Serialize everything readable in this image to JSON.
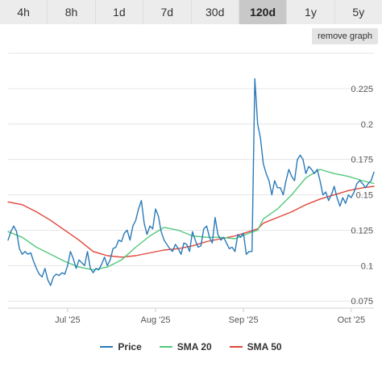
{
  "tabs": [
    {
      "label": "4h",
      "active": false
    },
    {
      "label": "8h",
      "active": false
    },
    {
      "label": "1d",
      "active": false
    },
    {
      "label": "7d",
      "active": false
    },
    {
      "label": "30d",
      "active": false
    },
    {
      "label": "120d",
      "active": true
    },
    {
      "label": "1y",
      "active": false
    },
    {
      "label": "5y",
      "active": false
    }
  ],
  "remove_graph_label": "remove graph",
  "colors": {
    "price": "#2a7ab8",
    "sma20": "#52c97a",
    "sma50": "#e0453a",
    "grid": "#e6e6e6"
  },
  "legend": [
    {
      "label": "Price",
      "color": "#2a7ab8"
    },
    {
      "label": "SMA 20",
      "color": "#52c97a"
    },
    {
      "label": "SMA 50",
      "color": "#e0453a"
    }
  ],
  "chart_data": {
    "type": "line",
    "x_ticks": [
      "Jul '25",
      "Aug '25",
      "Sep '25",
      "Oct '25"
    ],
    "y_ticks": [
      "0.075",
      "0.1",
      "0.125",
      "0.15",
      "0.175",
      "0.2",
      "0.225"
    ],
    "ylim": [
      0.07,
      0.25
    ],
    "grid": true,
    "x_range_days": [
      0,
      129
    ],
    "x_tick_days": [
      21,
      52,
      83,
      121
    ],
    "series": [
      {
        "name": "Price",
        "points": [
          [
            0,
            0.118
          ],
          [
            1,
            0.124
          ],
          [
            2,
            0.128
          ],
          [
            3,
            0.124
          ],
          [
            4,
            0.112
          ],
          [
            5,
            0.108
          ],
          [
            6,
            0.11
          ],
          [
            7,
            0.108
          ],
          [
            8,
            0.109
          ],
          [
            9,
            0.103
          ],
          [
            10,
            0.098
          ],
          [
            11,
            0.094
          ],
          [
            12,
            0.092
          ],
          [
            13,
            0.098
          ],
          [
            14,
            0.09
          ],
          [
            15,
            0.086
          ],
          [
            16,
            0.092
          ],
          [
            17,
            0.094
          ],
          [
            18,
            0.093
          ],
          [
            19,
            0.095
          ],
          [
            20,
            0.094
          ],
          [
            21,
            0.1
          ],
          [
            22,
            0.11
          ],
          [
            23,
            0.105
          ],
          [
            24,
            0.098
          ],
          [
            25,
            0.104
          ],
          [
            26,
            0.102
          ],
          [
            27,
            0.1
          ],
          [
            28,
            0.11
          ],
          [
            29,
            0.098
          ],
          [
            30,
            0.095
          ],
          [
            31,
            0.098
          ],
          [
            32,
            0.097
          ],
          [
            33,
            0.101
          ],
          [
            34,
            0.106
          ],
          [
            35,
            0.1
          ],
          [
            36,
            0.104
          ],
          [
            37,
            0.112
          ],
          [
            38,
            0.113
          ],
          [
            39,
            0.118
          ],
          [
            40,
            0.117
          ],
          [
            41,
            0.123
          ],
          [
            42,
            0.125
          ],
          [
            43,
            0.118
          ],
          [
            44,
            0.128
          ],
          [
            45,
            0.132
          ],
          [
            46,
            0.14
          ],
          [
            47,
            0.146
          ],
          [
            48,
            0.13
          ],
          [
            49,
            0.122
          ],
          [
            50,
            0.128
          ],
          [
            51,
            0.126
          ],
          [
            52,
            0.14
          ],
          [
            53,
            0.135
          ],
          [
            54,
            0.124
          ],
          [
            55,
            0.118
          ],
          [
            56,
            0.115
          ],
          [
            57,
            0.112
          ],
          [
            58,
            0.11
          ],
          [
            59,
            0.115
          ],
          [
            60,
            0.112
          ],
          [
            61,
            0.108
          ],
          [
            62,
            0.116
          ],
          [
            63,
            0.115
          ],
          [
            64,
            0.11
          ],
          [
            65,
            0.124
          ],
          [
            66,
            0.118
          ],
          [
            67,
            0.113
          ],
          [
            68,
            0.114
          ],
          [
            69,
            0.126
          ],
          [
            70,
            0.128
          ],
          [
            71,
            0.12
          ],
          [
            72,
            0.116
          ],
          [
            73,
            0.134
          ],
          [
            74,
            0.122
          ],
          [
            75,
            0.118
          ],
          [
            76,
            0.12
          ],
          [
            77,
            0.116
          ],
          [
            78,
            0.112
          ],
          [
            79,
            0.113
          ],
          [
            80,
            0.11
          ],
          [
            81,
            0.122
          ],
          [
            82,
            0.12
          ],
          [
            83,
            0.123
          ],
          [
            84,
            0.108
          ],
          [
            85,
            0.11
          ],
          [
            86,
            0.11
          ],
          [
            87,
            0.232
          ],
          [
            88,
            0.2
          ],
          [
            89,
            0.19
          ],
          [
            90,
            0.172
          ],
          [
            91,
            0.165
          ],
          [
            92,
            0.16
          ],
          [
            93,
            0.15
          ],
          [
            94,
            0.16
          ],
          [
            95,
            0.155
          ],
          [
            96,
            0.155
          ],
          [
            97,
            0.15
          ],
          [
            98,
            0.16
          ],
          [
            99,
            0.168
          ],
          [
            100,
            0.163
          ],
          [
            101,
            0.16
          ],
          [
            102,
            0.175
          ],
          [
            103,
            0.178
          ],
          [
            104,
            0.175
          ],
          [
            105,
            0.165
          ],
          [
            106,
            0.17
          ],
          [
            107,
            0.168
          ],
          [
            108,
            0.165
          ],
          [
            109,
            0.168
          ],
          [
            110,
            0.16
          ],
          [
            111,
            0.15
          ],
          [
            112,
            0.152
          ],
          [
            113,
            0.146
          ],
          [
            114,
            0.15
          ],
          [
            115,
            0.156
          ],
          [
            116,
            0.148
          ],
          [
            117,
            0.142
          ],
          [
            118,
            0.148
          ],
          [
            119,
            0.144
          ],
          [
            120,
            0.15
          ],
          [
            121,
            0.148
          ],
          [
            122,
            0.152
          ],
          [
            123,
            0.158
          ],
          [
            124,
            0.16
          ],
          [
            125,
            0.158
          ],
          [
            126,
            0.155
          ],
          [
            127,
            0.158
          ],
          [
            128,
            0.16
          ],
          [
            129,
            0.166
          ]
        ]
      },
      {
        "name": "SMA 20",
        "points": [
          [
            0,
            0.124
          ],
          [
            5,
            0.12
          ],
          [
            10,
            0.113
          ],
          [
            15,
            0.108
          ],
          [
            20,
            0.103
          ],
          [
            25,
            0.099
          ],
          [
            30,
            0.097
          ],
          [
            35,
            0.099
          ],
          [
            40,
            0.104
          ],
          [
            45,
            0.113
          ],
          [
            50,
            0.121
          ],
          [
            55,
            0.127
          ],
          [
            60,
            0.125
          ],
          [
            65,
            0.121
          ],
          [
            70,
            0.12
          ],
          [
            75,
            0.12
          ],
          [
            80,
            0.119
          ],
          [
            85,
            0.123
          ],
          [
            88,
            0.125
          ],
          [
            90,
            0.133
          ],
          [
            95,
            0.14
          ],
          [
            100,
            0.15
          ],
          [
            105,
            0.162
          ],
          [
            110,
            0.168
          ],
          [
            115,
            0.165
          ],
          [
            120,
            0.163
          ],
          [
            125,
            0.16
          ],
          [
            129,
            0.158
          ]
        ]
      },
      {
        "name": "SMA 50",
        "points": [
          [
            0,
            0.145
          ],
          [
            5,
            0.143
          ],
          [
            10,
            0.138
          ],
          [
            15,
            0.132
          ],
          [
            20,
            0.125
          ],
          [
            25,
            0.118
          ],
          [
            30,
            0.11
          ],
          [
            35,
            0.107
          ],
          [
            40,
            0.106
          ],
          [
            45,
            0.107
          ],
          [
            50,
            0.109
          ],
          [
            55,
            0.111
          ],
          [
            60,
            0.112
          ],
          [
            65,
            0.114
          ],
          [
            70,
            0.117
          ],
          [
            75,
            0.119
          ],
          [
            80,
            0.121
          ],
          [
            85,
            0.124
          ],
          [
            88,
            0.126
          ],
          [
            90,
            0.13
          ],
          [
            95,
            0.134
          ],
          [
            100,
            0.138
          ],
          [
            105,
            0.143
          ],
          [
            110,
            0.147
          ],
          [
            115,
            0.15
          ],
          [
            120,
            0.153
          ],
          [
            125,
            0.155
          ],
          [
            129,
            0.156
          ]
        ]
      }
    ]
  }
}
